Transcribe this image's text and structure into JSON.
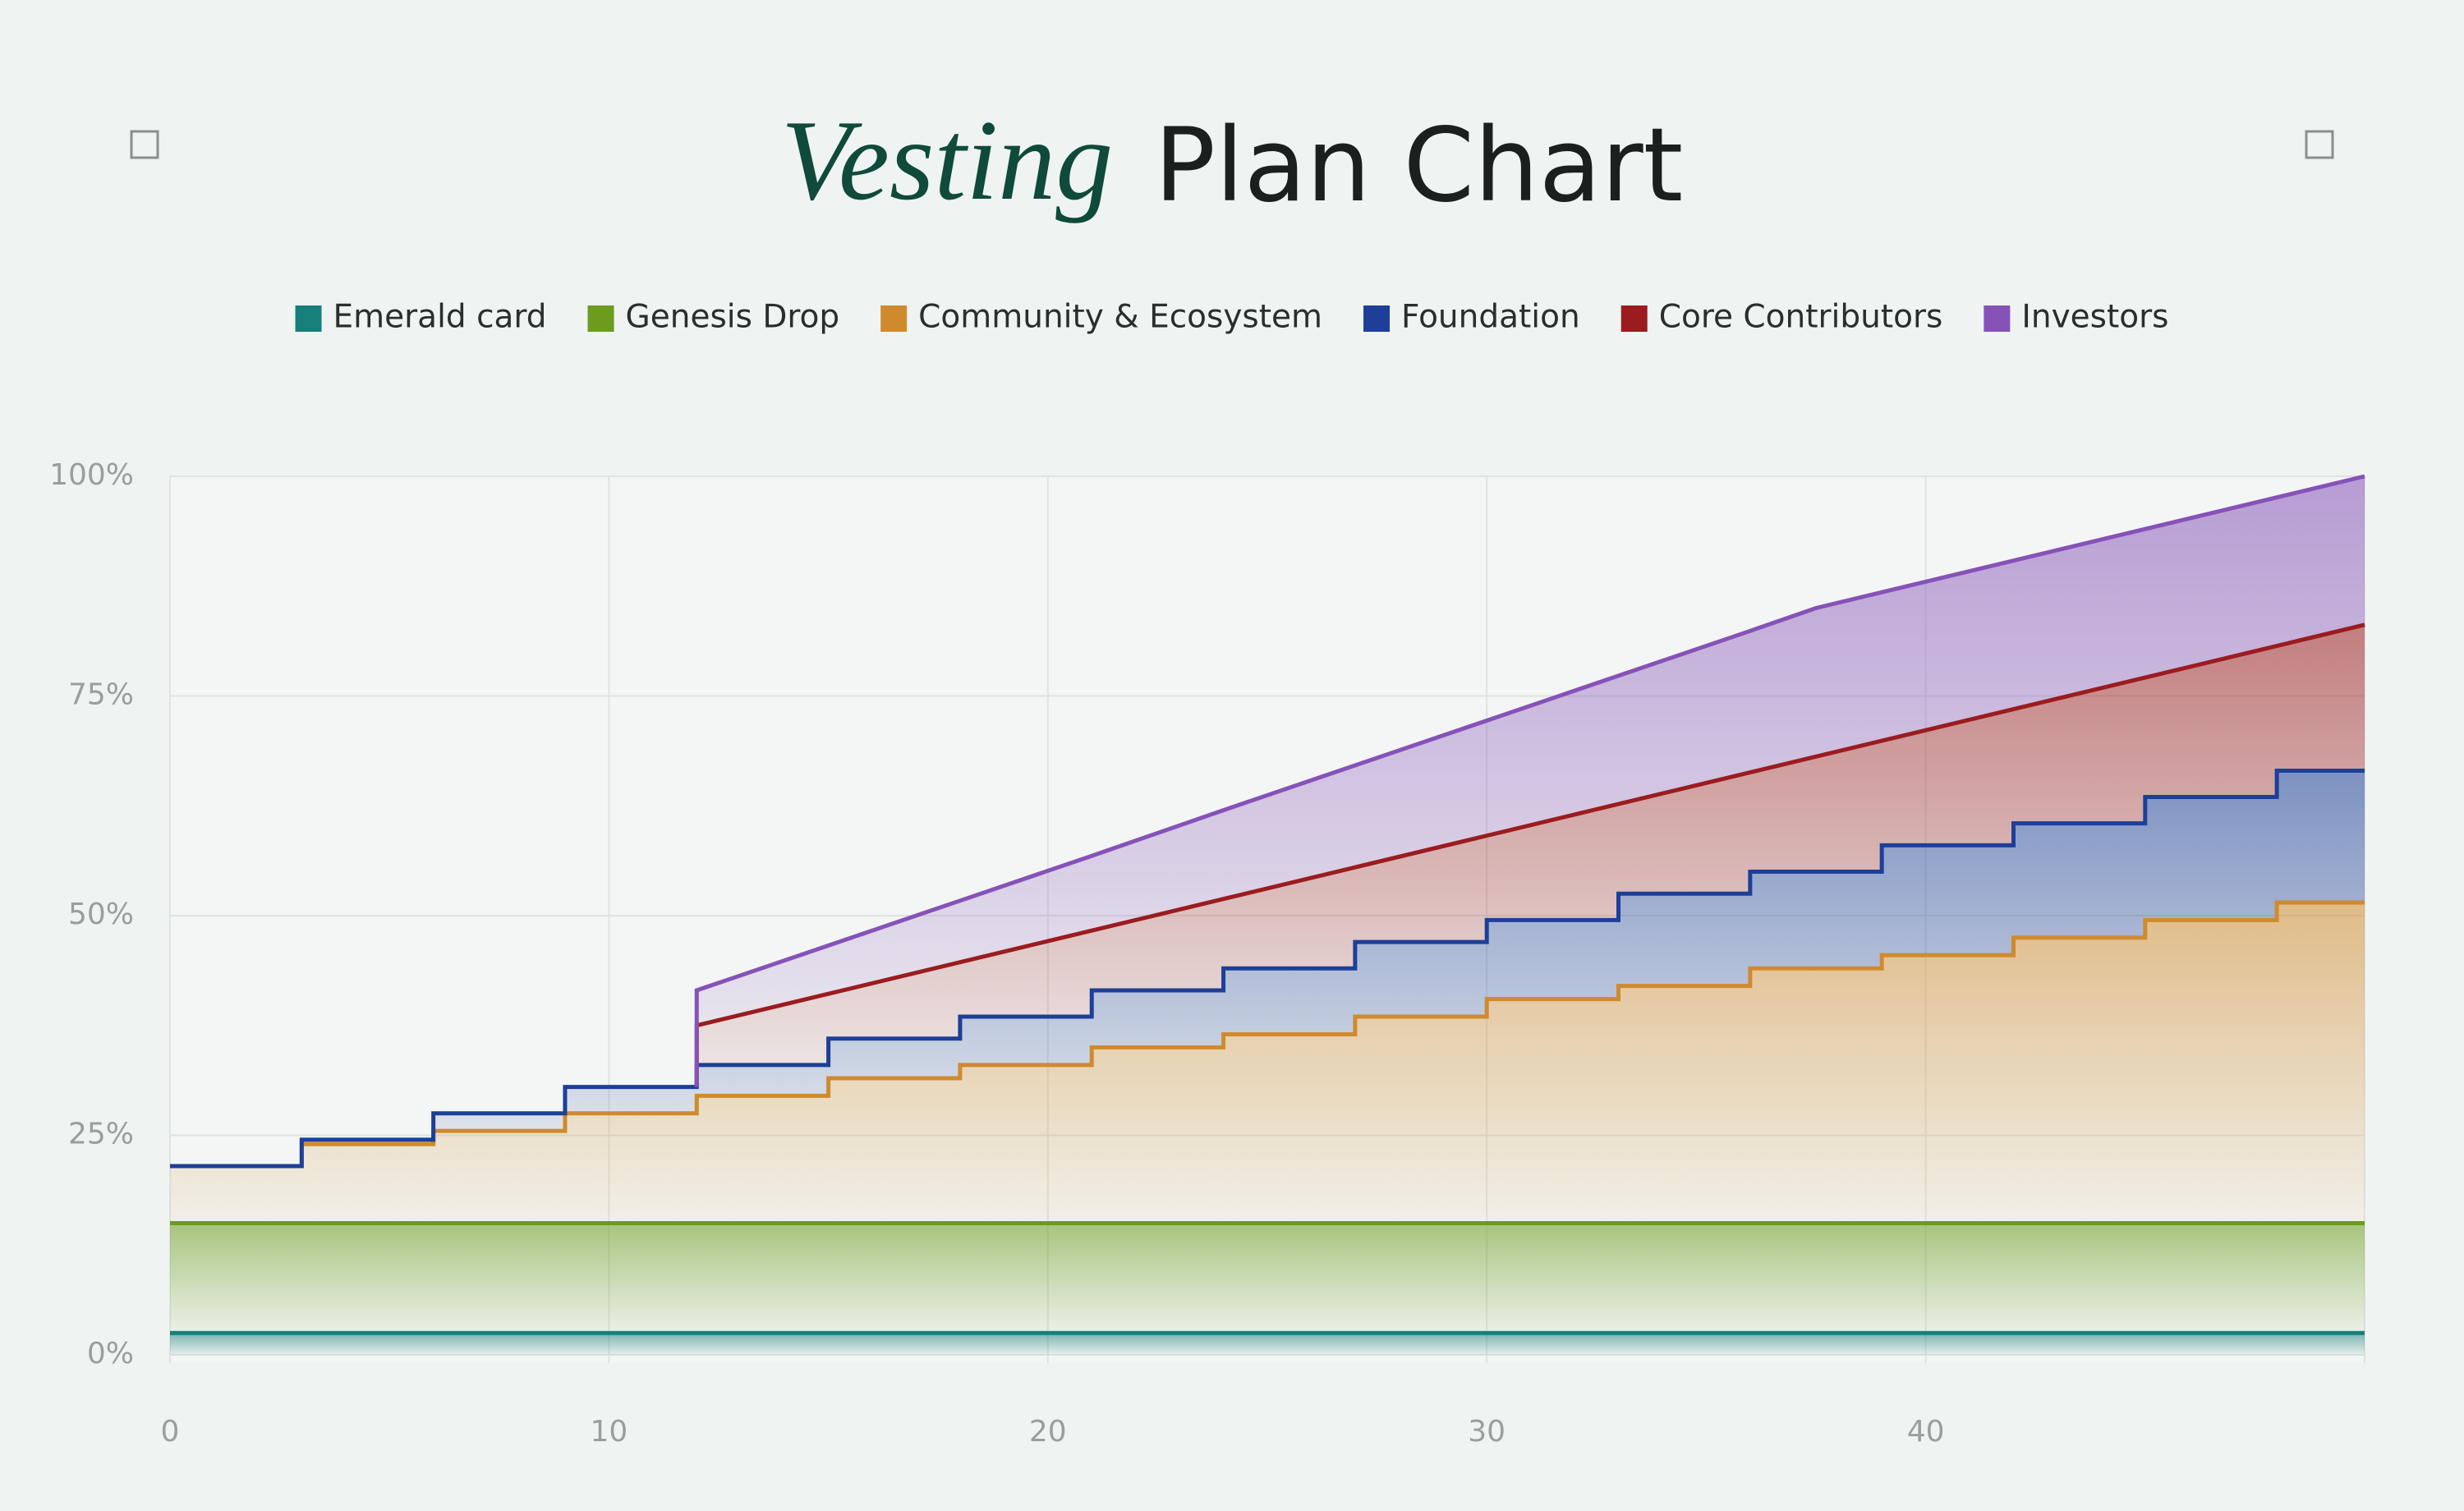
{
  "chart_data": {
    "type": "stacked_area",
    "title_emphasis": "Vesting",
    "title": "Plan Chart",
    "stacked": true,
    "grid": true,
    "x": [
      0,
      3,
      3,
      6,
      6,
      9,
      9,
      12,
      12,
      15,
      15,
      18,
      18,
      21,
      21,
      24,
      24,
      27,
      27,
      30,
      30,
      33,
      33,
      36,
      36,
      37.5,
      39,
      39,
      42,
      42,
      45,
      45,
      48,
      48,
      50
    ],
    "xlim": [
      0,
      50
    ],
    "xticks": [
      0,
      10,
      20,
      30,
      40
    ],
    "ylim": [
      0,
      100
    ],
    "yticks": [
      {
        "value": 0,
        "label": "0%"
      },
      {
        "value": 25,
        "label": "25%"
      },
      {
        "value": 50,
        "label": "50%"
      },
      {
        "value": 75,
        "label": "75%"
      },
      {
        "value": 100,
        "label": "100%"
      }
    ],
    "series": [
      {
        "name": "Emerald card",
        "color": "#17807a",
        "values": [
          2.5,
          2.5,
          2.5,
          2.5,
          2.5,
          2.5,
          2.5,
          2.5,
          2.5,
          2.5,
          2.5,
          2.5,
          2.5,
          2.5,
          2.5,
          2.5,
          2.5,
          2.5,
          2.5,
          2.5,
          2.5,
          2.5,
          2.5,
          2.5,
          2.5,
          2.5,
          2.5,
          2.5,
          2.5,
          2.5,
          2.5,
          2.5,
          2.5,
          2.5,
          2.5
        ]
      },
      {
        "name": "Genesis Drop",
        "color": "#6b9c1e",
        "values": [
          12.5,
          12.5,
          12.5,
          12.5,
          12.5,
          12.5,
          12.5,
          12.5,
          12.5,
          12.5,
          12.5,
          12.5,
          12.5,
          12.5,
          12.5,
          12.5,
          12.5,
          12.5,
          12.5,
          12.5,
          12.5,
          12.5,
          12.5,
          12.5,
          12.5,
          12.5,
          12.5,
          12.5,
          12.5,
          12.5,
          12.5,
          12.5,
          12.5,
          12.5,
          12.5
        ]
      },
      {
        "name": "Community & Ecosystem",
        "color": "#d08a2e",
        "values": [
          6.5,
          6.5,
          9,
          9,
          10.5,
          10.5,
          12.5,
          12.5,
          14.5,
          14.5,
          16.5,
          16.5,
          18,
          18,
          20,
          20,
          21.5,
          21.5,
          23.5,
          23.5,
          25.5,
          25.5,
          27,
          27,
          29,
          29,
          29,
          30.5,
          30.5,
          32.5,
          32.5,
          34.5,
          34.5,
          36.5,
          36.5
        ]
      },
      {
        "name": "Foundation",
        "color": "#1d3f98",
        "values": [
          0,
          0,
          0.5,
          0.5,
          2,
          2,
          3,
          3,
          3.5,
          3.5,
          4.5,
          4.5,
          5.5,
          5.5,
          6.5,
          6.5,
          7.5,
          7.5,
          8.5,
          8.5,
          9,
          9,
          10.5,
          10.5,
          11,
          11,
          11,
          12.5,
          12.5,
          13,
          13,
          14,
          14,
          15,
          15
        ]
      },
      {
        "name": "Core Contributors",
        "color": "#9b1c1f",
        "values": [
          null,
          null,
          null,
          null,
          null,
          null,
          null,
          0,
          4.5,
          8.1,
          5.1,
          8.7,
          6.2,
          9.8,
          6.8,
          10.4,
          7.9,
          11.5,
          8.5,
          12.1,
          9.6,
          13.2,
          10.2,
          13.8,
          11.3,
          13.1,
          14.9,
          11.9,
          15.5,
          13,
          16.6,
          13.6,
          17.2,
          14.2,
          16.6
        ]
      },
      {
        "name": "Investors",
        "color": "#8652b8",
        "values": [
          null,
          null,
          null,
          null,
          null,
          null,
          null,
          0,
          4,
          5.5,
          5.5,
          7,
          7,
          8.5,
          8.5,
          10.1,
          10.1,
          11.6,
          11.6,
          13.1,
          13.1,
          14.6,
          14.6,
          16.1,
          16.1,
          16.9,
          16.9,
          16.9,
          16.9,
          16.9,
          16.9,
          16.9,
          16.9,
          16.9,
          16.9
        ]
      }
    ]
  }
}
